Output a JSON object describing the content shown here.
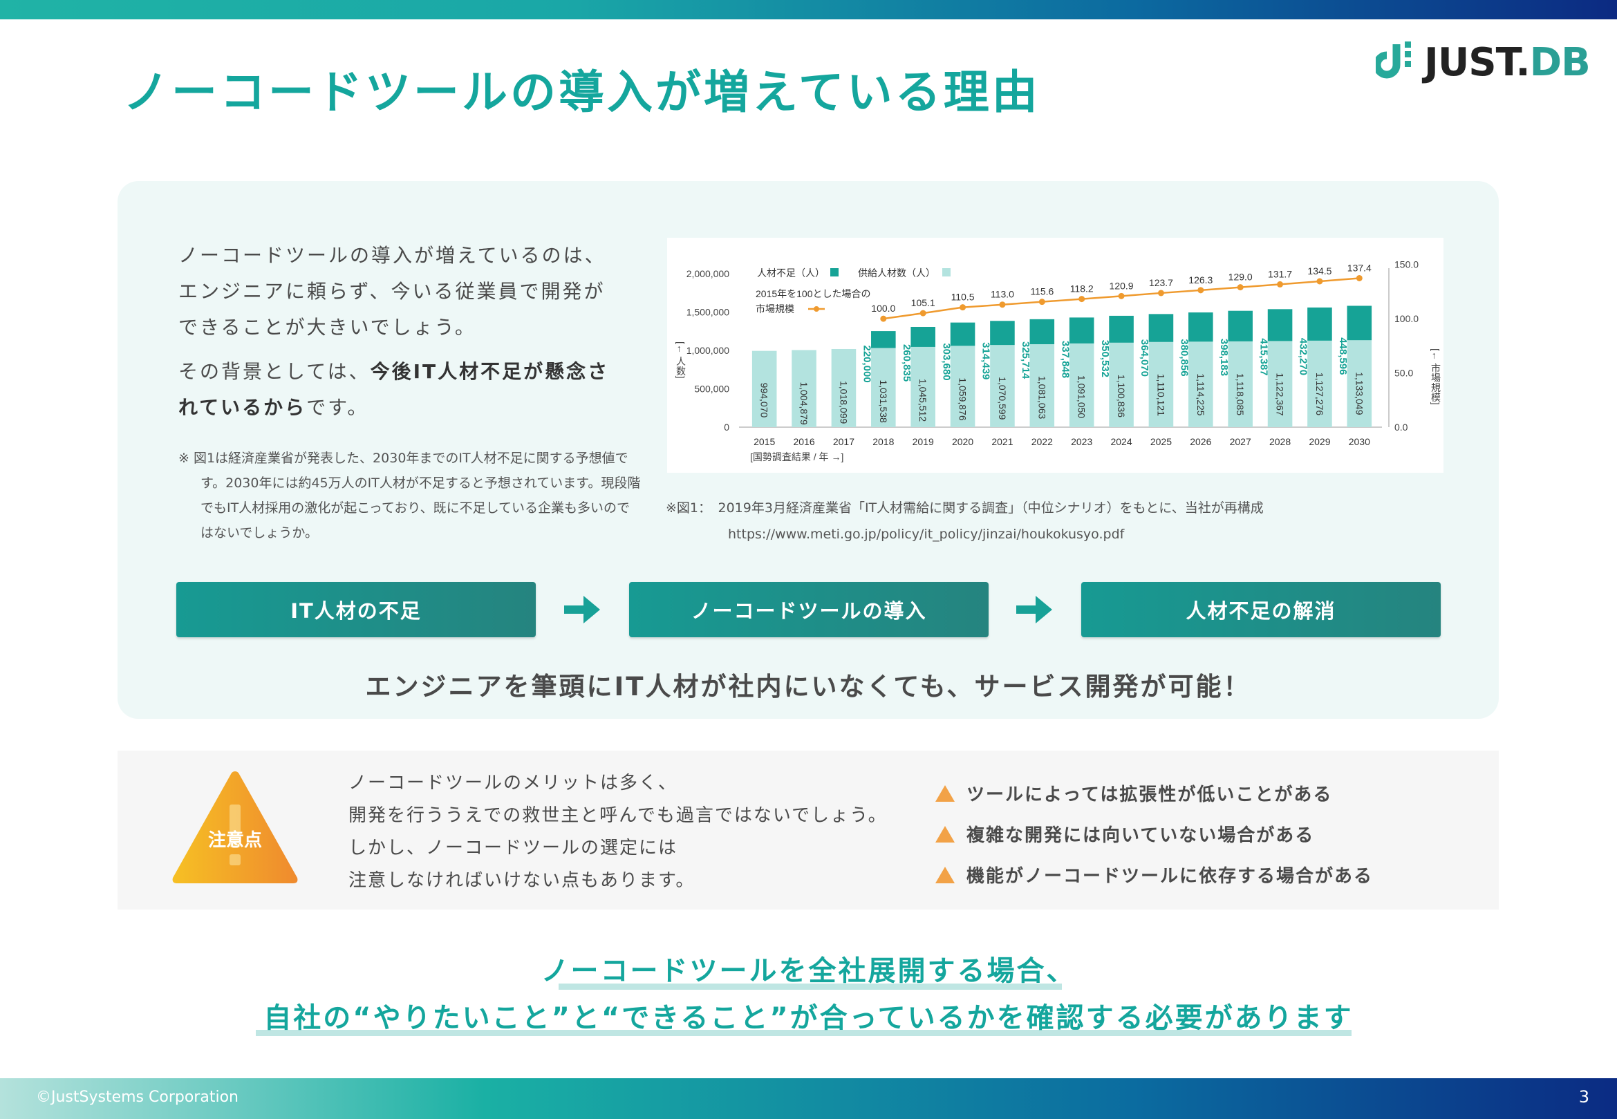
{
  "slide": {
    "title": "ノーコードツールの導入が増えている理由",
    "logo_text_a": "JUST",
    "logo_text_b": "DB",
    "copyright": "©JustSystems Corporation",
    "page_number": "3"
  },
  "intro": {
    "para1": "ノーコードツールの導入が増えているのは、エンジニアに頼らず、今いる従業員で開発ができることが大きいでしょう。",
    "para2_a": "その背景としては、",
    "para2_bold1": "今後IT人材不足が懸念されているから",
    "para2_b": "です。",
    "note": "※  図1は経済産業省が発表した、2030年までのIT人材不足に関する予想値です。2030年には約45万人のIT人材が不足すると予想されています。現段階でもIT人材採用の激化が起こっており、既に不足している企業も多いのではないでしょうか。"
  },
  "figure": {
    "caption_line1": "※図1：　2019年3月経済産業省「IT人材需給に関する調査」（中位シナリオ）をもとに、当社が再構成",
    "caption_line2": "https://www.meti.go.jp/policy/it_policy/jinzai/houkokusyo.pdf"
  },
  "chart_data": {
    "type": "bar",
    "categories": [
      "2015",
      "2016",
      "2017",
      "2018",
      "2019",
      "2020",
      "2021",
      "2022",
      "2023",
      "2024",
      "2025",
      "2026",
      "2027",
      "2028",
      "2029",
      "2030"
    ],
    "series": [
      {
        "name": "供給人材数（人）",
        "color": "#b3e3df",
        "values": [
          994070,
          1004879,
          1018099,
          1031538,
          1045512,
          1059876,
          1070599,
          1081063,
          1091050,
          1100836,
          1110121,
          1114225,
          1118085,
          1122367,
          1127276,
          1133049
        ],
        "labels": [
          "994,070",
          "1,004,879",
          "1,018,099",
          "1,031,538",
          "1,045,512",
          "1,059,876",
          "1,070,599",
          "1,081,063",
          "1,091,050",
          "1,100,836",
          "1,110,121",
          "1,114,225",
          "1,118,085",
          "1,122,367",
          "1,127,276",
          "1,133,049"
        ]
      },
      {
        "name": "人材不足（人）",
        "color": "#16a396",
        "values": [
          null,
          null,
          null,
          220000,
          260835,
          303680,
          314439,
          325714,
          337848,
          350532,
          364070,
          380856,
          398183,
          415387,
          432270,
          448596
        ],
        "labels": [
          "",
          "",
          "",
          "220,000",
          "260,835",
          "303,680",
          "314,439",
          "325,714",
          "337,848",
          "350,532",
          "364,070",
          "380,856",
          "398,183",
          "415,387",
          "432,270",
          "448,596"
        ]
      },
      {
        "name": "2015年を100とした場合の市場規模",
        "color": "#ef9a2e",
        "values": [
          null,
          null,
          null,
          100.0,
          105.1,
          110.5,
          113.0,
          115.6,
          118.2,
          120.9,
          123.7,
          126.3,
          129.0,
          131.7,
          134.5,
          137.4
        ],
        "labels": [
          "",
          "",
          "",
          "100.0",
          "105.1",
          "110.5",
          "113.0",
          "115.6",
          "118.2",
          "120.9",
          "123.7",
          "126.3",
          "129.0",
          "131.7",
          "134.5",
          "137.4"
        ]
      }
    ],
    "legend": {
      "shortage": "人材不足（人）",
      "supply": "供給人材数（人）",
      "market_line1": "2015年を100とした場合の",
      "market_line2": "市場規模"
    },
    "y_left": {
      "ticks": [
        "2,000,000",
        "1,500,000",
        "1,000,000",
        "500,000",
        "0"
      ],
      "tick_values": [
        2000000,
        1500000,
        1000000,
        500000,
        0
      ],
      "label": "[← 人数]",
      "ylim": [
        0,
        2000000
      ]
    },
    "y_right": {
      "ticks": [
        "150.0",
        "100.0",
        "50.0",
        "0.0"
      ],
      "tick_values": [
        150,
        100,
        50,
        0
      ],
      "label": "[← 市場規模]",
      "ylim": [
        0,
        150
      ]
    },
    "x_note": "[国勢調査結果 / 年 →]",
    "grid": false,
    "legend_position": "top-left"
  },
  "flow": {
    "step1": "IT人材の不足",
    "step2": "ノーコードツールの導入",
    "step3": "人材不足の解消",
    "conclusion": "エンジニアを筆頭にIT人材が社内にいなくても、サービス開発が可能！"
  },
  "caution": {
    "badge": "注意点",
    "lines": [
      "ノーコードツールのメリットは多く、",
      "開発を行ううえでの救世主と呼んでも過言ではないでしょう。",
      "しかし、ノーコードツールの選定には",
      "注意しなければいけない点もあります。"
    ],
    "points": [
      "ツールによっては拡張性が低いことがある",
      "複雑な開発には向いていない場合がある",
      "機能がノーコードツールに依存する場合がある"
    ]
  },
  "bottom": {
    "line1": "ノーコードツールを全社展開する場合、",
    "line2": "自社の“やりたいこと”と“できること”が合っているかを確認する必要があります"
  },
  "colors": {
    "accent": "#14a69d",
    "dark_teal": "#25847f",
    "warning_orange": "#f2a247"
  }
}
